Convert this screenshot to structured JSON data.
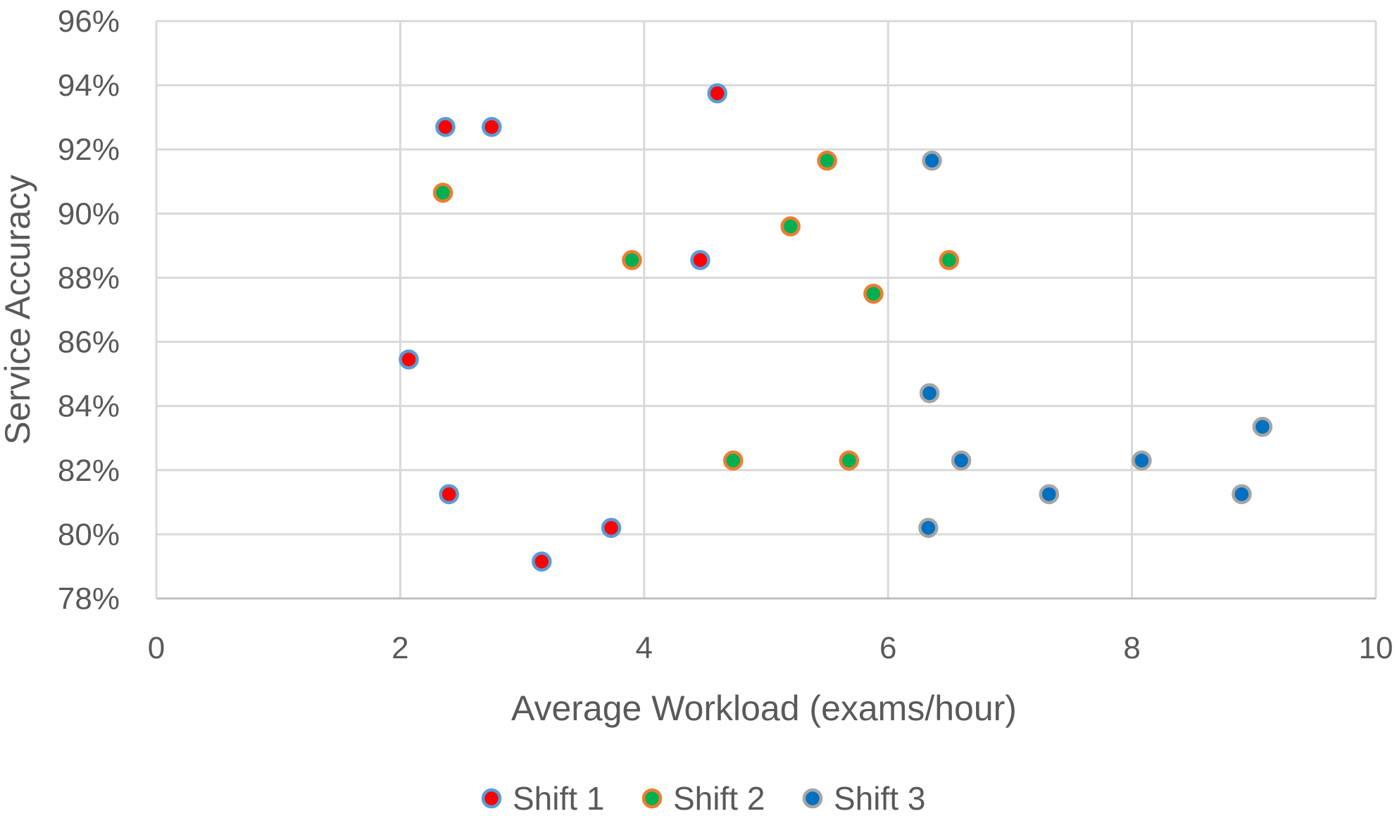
{
  "chart_data": {
    "type": "scatter",
    "title": "",
    "xlabel": "Average Workload (exams/hour)",
    "ylabel": "Service Accuracy",
    "xlim": [
      0,
      10
    ],
    "ylim": [
      78,
      96
    ],
    "x_ticks": [
      0,
      2,
      4,
      6,
      8,
      10
    ],
    "x_tick_labels": [
      "0",
      "2",
      "4",
      "6",
      "8",
      "10"
    ],
    "y_ticks": [
      78,
      80,
      82,
      84,
      86,
      88,
      90,
      92,
      94,
      96
    ],
    "y_tick_labels": [
      "78%",
      "80%",
      "82%",
      "84%",
      "86%",
      "88%",
      "90%",
      "92%",
      "94%",
      "96%"
    ],
    "grid": true,
    "legend_position": "bottom",
    "series": [
      {
        "name": "Shift 1",
        "fill": "#FF0000",
        "stroke": "#5B9BD5",
        "points": [
          {
            "x": 2.37,
            "y": 92.7
          },
          {
            "x": 2.75,
            "y": 92.7
          },
          {
            "x": 4.6,
            "y": 93.75
          },
          {
            "x": 4.46,
            "y": 88.55
          },
          {
            "x": 2.07,
            "y": 85.45
          },
          {
            "x": 2.4,
            "y": 81.25
          },
          {
            "x": 3.73,
            "y": 80.2
          },
          {
            "x": 3.16,
            "y": 79.15
          }
        ]
      },
      {
        "name": "Shift 2",
        "fill": "#00B050",
        "stroke": "#ED7D31",
        "points": [
          {
            "x": 2.35,
            "y": 90.65
          },
          {
            "x": 5.5,
            "y": 91.65
          },
          {
            "x": 5.2,
            "y": 89.6
          },
          {
            "x": 3.9,
            "y": 88.55
          },
          {
            "x": 6.5,
            "y": 88.55
          },
          {
            "x": 5.88,
            "y": 87.5
          },
          {
            "x": 4.73,
            "y": 82.3
          },
          {
            "x": 5.68,
            "y": 82.3
          }
        ]
      },
      {
        "name": "Shift 3",
        "fill": "#0070C0",
        "stroke": "#A5A5A5",
        "points": [
          {
            "x": 6.36,
            "y": 91.65
          },
          {
            "x": 6.34,
            "y": 84.4
          },
          {
            "x": 9.07,
            "y": 83.35
          },
          {
            "x": 6.6,
            "y": 82.3
          },
          {
            "x": 8.08,
            "y": 82.3
          },
          {
            "x": 7.32,
            "y": 81.25
          },
          {
            "x": 8.9,
            "y": 81.25
          },
          {
            "x": 6.33,
            "y": 80.2
          }
        ]
      }
    ]
  }
}
